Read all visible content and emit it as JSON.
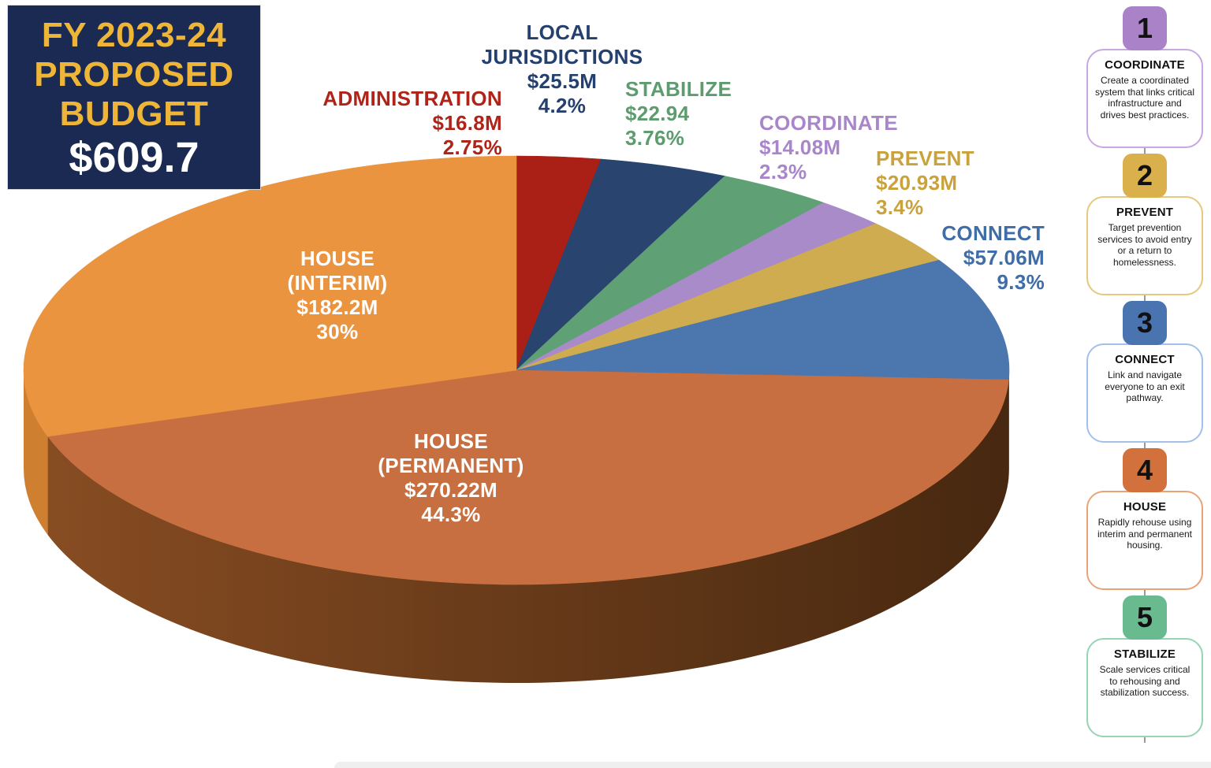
{
  "header": {
    "line1": "FY 2023-24",
    "line2": "PROPOSED",
    "line3": "BUDGET",
    "amount": "$609.7",
    "background_color": "#1b2a52",
    "accent_color": "#efb537"
  },
  "chart_data": {
    "type": "pie",
    "title": "FY 2023-24 Proposed Budget",
    "total_label": "$609.7",
    "total_millions": 609.7,
    "style": "3d-ellipse",
    "start_angle_deg_from_top": 0,
    "direction": "clockwise",
    "segments": [
      {
        "name": "ADMINISTRATION",
        "amount_label": "$16.8M",
        "amount_millions": 16.8,
        "percent_label": "2.75%",
        "percent_value": 2.75,
        "color": "#aa2016",
        "text_color": "#b02318",
        "label_lines": [
          "ADMINISTRATION",
          "$16.8M",
          "2.75%"
        ]
      },
      {
        "name": "LOCAL JURISDICTIONS",
        "amount_label": "$25.5M",
        "amount_millions": 25.5,
        "percent_label": "4.2%",
        "percent_value": 4.2,
        "color": "#2a4470",
        "text_color": "#24406e",
        "label_lines": [
          "LOCAL",
          "JURISDICTIONS",
          "$25.5M",
          "4.2%"
        ]
      },
      {
        "name": "STABILIZE",
        "amount_label": "$22.94",
        "amount_millions": 22.94,
        "percent_label": "3.76%",
        "percent_value": 3.76,
        "color": "#5fa075",
        "text_color": "#5c9c6e",
        "label_lines": [
          "STABILIZE",
          "$22.94",
          "3.76%"
        ]
      },
      {
        "name": "COORDINATE",
        "amount_label": "$14.08M",
        "amount_millions": 14.08,
        "percent_label": "2.3%",
        "percent_value": 2.3,
        "color": "#a98bc9",
        "text_color": "#a985c9",
        "label_lines": [
          "COORDINATE",
          "$14.08M",
          "2.3%"
        ]
      },
      {
        "name": "PREVENT",
        "amount_label": "$20.93M",
        "amount_millions": 20.93,
        "percent_label": "3.4%",
        "percent_value": 3.4,
        "color": "#cfac4f",
        "text_color": "#c9a23c",
        "label_lines": [
          "PREVENT",
          "$20.93M",
          "3.4%"
        ]
      },
      {
        "name": "CONNECT",
        "amount_label": "$57.06M",
        "amount_millions": 57.06,
        "percent_label": "9.3%",
        "percent_value": 9.3,
        "color": "#4b76ae",
        "text_color": "#3e6da8",
        "label_lines": [
          "CONNECT",
          "$57.06M",
          "9.3%"
        ]
      },
      {
        "name": "HOUSE (PERMANENT)",
        "amount_label": "$270.22M",
        "amount_millions": 270.22,
        "percent_label": "44.3%",
        "percent_value": 44.3,
        "color": "#c76f40",
        "text_color": "#ffffff",
        "side_gradient": [
          "#874c22",
          "#472810"
        ],
        "label_lines": [
          "HOUSE",
          "(PERMANENT)",
          "$270.22M",
          "44.3%"
        ]
      },
      {
        "name": "HOUSE (INTERIM)",
        "amount_label": "$182.2M",
        "amount_millions": 182.2,
        "percent_label": "30%",
        "percent_value": 30,
        "color": "#eb9440",
        "text_color": "#ffffff",
        "side_color": "#ce8030",
        "label_lines": [
          "HOUSE",
          "(INTERIM)",
          "$182.2M",
          "30%"
        ]
      }
    ]
  },
  "sidebar": {
    "steps": [
      {
        "number": "1",
        "title": "COORDINATE",
        "description": "Create a coordinated system that links critical infrastructure and drives best practices.",
        "tab_color": "#a982c8",
        "border_color": "#c8a8e0"
      },
      {
        "number": "2",
        "title": "PREVENT",
        "description": "Target prevention services to avoid entry or a return to homelessness.",
        "tab_color": "#d9b04c",
        "border_color": "#e6c87e"
      },
      {
        "number": "3",
        "title": "CONNECT",
        "description": "Link and navigate everyone to an exit pathway.",
        "tab_color": "#4a74b0",
        "border_color": "#a3c1e8"
      },
      {
        "number": "4",
        "title": "HOUSE",
        "description": "Rapidly rehouse using interim and permanent housing.",
        "tab_color": "#d2713b",
        "border_color": "#e8a478"
      },
      {
        "number": "5",
        "title": "STABILIZE",
        "description": "Scale services critical to rehousing and stabilization success.",
        "tab_color": "#69ba8e",
        "border_color": "#96d4b4"
      }
    ]
  }
}
